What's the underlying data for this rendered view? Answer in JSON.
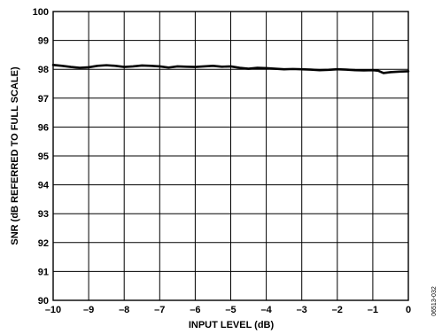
{
  "chart_data": {
    "type": "line",
    "xlabel": "INPUT LEVEL (dB)",
    "ylabel": "SNR (dB REFERRED TO FULL SCALE)",
    "xlim": [
      -10,
      0
    ],
    "ylim": [
      90,
      100
    ],
    "x_ticks": [
      "–10",
      "–9",
      "–8",
      "–7",
      "–6",
      "–5",
      "–4",
      "–3",
      "–2",
      "–1",
      "0"
    ],
    "y_ticks": [
      "90",
      "91",
      "92",
      "93",
      "94",
      "95",
      "96",
      "97",
      "98",
      "99",
      "100"
    ],
    "grid": true,
    "figure_id": "06513-032",
    "series": [
      {
        "color": "#000000",
        "x": [
          -10,
          -9.75,
          -9.5,
          -9.25,
          -9,
          -8.75,
          -8.5,
          -8.25,
          -8,
          -7.75,
          -7.5,
          -7.25,
          -7,
          -6.75,
          -6.5,
          -6.25,
          -6,
          -5.75,
          -5.5,
          -5.25,
          -5,
          -4.75,
          -4.5,
          -4.25,
          -4,
          -3.75,
          -3.5,
          -3.25,
          -3,
          -2.75,
          -2.5,
          -2.25,
          -2,
          -1.75,
          -1.5,
          -1.25,
          -1,
          -0.85,
          -0.7,
          -0.5,
          -0.25,
          0
        ],
        "y": [
          98.15,
          98.12,
          98.08,
          98.05,
          98.07,
          98.12,
          98.14,
          98.12,
          98.08,
          98.1,
          98.13,
          98.12,
          98.1,
          98.06,
          98.1,
          98.09,
          98.08,
          98.1,
          98.12,
          98.09,
          98.1,
          98.05,
          98.02,
          98.05,
          98.04,
          98.02,
          98.0,
          98.01,
          98.0,
          97.99,
          97.97,
          97.98,
          98.0,
          97.99,
          97.97,
          97.96,
          97.97,
          97.95,
          97.87,
          97.9,
          97.92,
          97.93
        ]
      }
    ]
  }
}
